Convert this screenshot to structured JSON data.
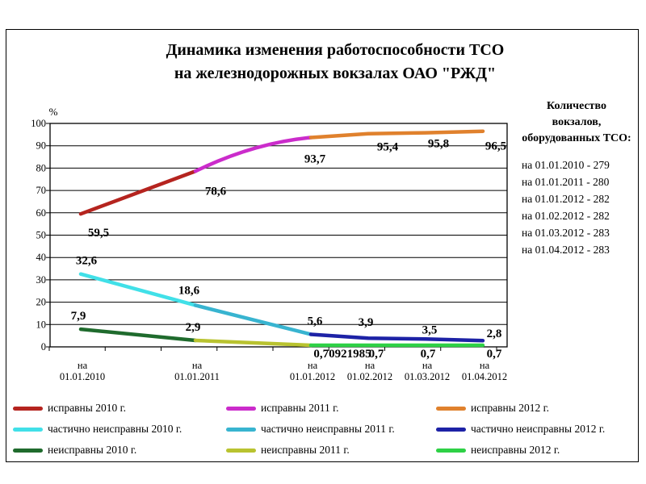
{
  "title": {
    "line1": "Динамика изменения работоспособности ТСО",
    "line2": "на железнодорожных вокзалах ОАО \"РЖД\""
  },
  "side_panel": {
    "heading_lines": [
      "Количество",
      "вокзалов,",
      "оборудованных ТСО:"
    ],
    "items": [
      "на 01.01.2010 - 279",
      "на 01.01.2011 - 280",
      "на 01.01.2012 - 282",
      "на 01.02.2012 - 282",
      "на 01.03.2012 - 283",
      "на 01.04.2012 - 283"
    ]
  },
  "chart_data": {
    "type": "line",
    "title": "Динамика изменения работоспособности ТСО на железнодорожных вокзалах ОАО \"РЖД\"",
    "ylabel": "%",
    "ylim": [
      0,
      100
    ],
    "y_step": 10,
    "grid": true,
    "y_ticks": [
      "0",
      "10",
      "20",
      "30",
      "40",
      "50",
      "60",
      "70",
      "80",
      "90",
      "100"
    ],
    "categories": [
      {
        "line1": "на",
        "line2": "01.01.2010"
      },
      {
        "line1": "на",
        "line2": "01.01.2011"
      },
      {
        "line1": "на",
        "line2": "01.01.2012"
      },
      {
        "line1": "на",
        "line2": "01.02.2012"
      },
      {
        "line1": "на",
        "line2": "01.03.2012"
      },
      {
        "line1": "на",
        "line2": "01.04.2012"
      }
    ],
    "series": [
      {
        "name": "исправны 2010 г.",
        "color": "#b5241f",
        "points": [
          [
            0,
            59.5
          ],
          [
            1,
            78.6
          ]
        ],
        "labels": [
          {
            "cat": 0,
            "text": "59,5",
            "dx": 22,
            "dy": 28
          },
          {
            "cat": 1,
            "text": "78,6",
            "dx": 25,
            "dy": 29
          }
        ]
      },
      {
        "name": "исправны 2011 г.",
        "color": "#cb2ccb",
        "bow": 14,
        "points": [
          [
            1,
            78.6
          ],
          [
            2,
            93.7
          ]
        ],
        "labels": [
          {
            "cat": 2,
            "text": "93,7",
            "dx": 5,
            "dy": 31
          }
        ]
      },
      {
        "name": "исправны 2012 г.",
        "color": "#e0812d",
        "points": [
          [
            2,
            93.7
          ],
          [
            3,
            95.4
          ],
          [
            4,
            95.8
          ],
          [
            5,
            96.5
          ]
        ],
        "labels": [
          {
            "cat": 3,
            "text": "95,4",
            "dx": 24,
            "dy": 21
          },
          {
            "cat": 4,
            "text": "95,8",
            "dx": 16,
            "dy": 18
          },
          {
            "cat": 5,
            "text": "96,5",
            "dx": 16,
            "dy": 23
          }
        ]
      },
      {
        "name": "частично неисправны 2010 г.",
        "color": "#41e0e8",
        "points": [
          [
            0,
            32.6
          ],
          [
            1,
            18.6
          ]
        ],
        "labels": [
          {
            "cat": 0,
            "text": "32,6",
            "dx": 7,
            "dy": -12
          },
          {
            "cat": 1,
            "text": "18,6",
            "dx": -8,
            "dy": -14
          }
        ]
      },
      {
        "name": "частично неисправны 2011 г.",
        "color": "#38b4d0",
        "points": [
          [
            1,
            18.6
          ],
          [
            2,
            5.6
          ]
        ],
        "labels": [
          {
            "cat": 2,
            "text": "5,6",
            "dx": 5,
            "dy": -12
          }
        ]
      },
      {
        "name": "частично неисправны 2012 г.",
        "color": "#1d22a6",
        "points": [
          [
            2,
            5.6
          ],
          [
            3,
            3.9
          ],
          [
            4,
            3.5
          ],
          [
            5,
            2.8
          ]
        ],
        "labels": [
          {
            "cat": 3,
            "text": "3,9",
            "dx": -3,
            "dy": -15
          },
          {
            "cat": 4,
            "text": "3,5",
            "dx": 5,
            "dy": -7
          },
          {
            "cat": 5,
            "text": "2,8",
            "dx": 14,
            "dy": -4
          }
        ]
      },
      {
        "name": "неисправны 2010 г.",
        "color": "#1f6b2d",
        "points": [
          [
            0,
            7.9
          ],
          [
            1,
            2.9
          ]
        ],
        "labels": [
          {
            "cat": 0,
            "text": "7,9",
            "dx": -3,
            "dy": -12
          },
          {
            "cat": 1,
            "text": "2,9",
            "dx": -3,
            "dy": -12
          }
        ]
      },
      {
        "name": "неисправны 2011 г.",
        "color": "#b9c330",
        "points": [
          [
            1,
            2.9
          ],
          [
            2,
            0.70921985
          ]
        ],
        "labels": [
          {
            "cat": 2,
            "text": "0,70921985",
            "dx": 39,
            "dy": 15
          }
        ]
      },
      {
        "name": "неисправны 2012 г.",
        "color": "#2ed146",
        "points": [
          [
            2,
            0.70921985
          ],
          [
            3,
            0.7
          ],
          [
            4,
            0.7
          ],
          [
            5,
            0.7
          ]
        ],
        "labels": [
          {
            "cat": 3,
            "text": "0,7",
            "dx": 10,
            "dy": 15
          },
          {
            "cat": 4,
            "text": "0,7",
            "dx": 3,
            "dy": 15
          },
          {
            "cat": 5,
            "text": "0,7",
            "dx": 14,
            "dy": 15
          }
        ]
      }
    ]
  },
  "legend": {
    "columns": [
      {
        "items": [
          {
            "label": "исправны 2010 г.",
            "color": "#b5241f"
          },
          {
            "label": "частично неисправны 2010 г.",
            "color": "#41e0e8"
          },
          {
            "label": "неисправны 2010 г.",
            "color": "#1f6b2d"
          }
        ]
      },
      {
        "items": [
          {
            "label": "исправны 2011 г.",
            "color": "#cb2ccb"
          },
          {
            "label": "частично неисправны 2011 г.",
            "color": "#38b4d0"
          },
          {
            "label": "неисправны 2011 г.",
            "color": "#b9c330"
          }
        ]
      },
      {
        "items": [
          {
            "label": "исправны 2012 г.",
            "color": "#e0812d"
          },
          {
            "label": "частично неисправны 2012 г.",
            "color": "#1d22a6"
          },
          {
            "label": "неисправны 2012 г.",
            "color": "#2ed146"
          }
        ]
      }
    ]
  }
}
